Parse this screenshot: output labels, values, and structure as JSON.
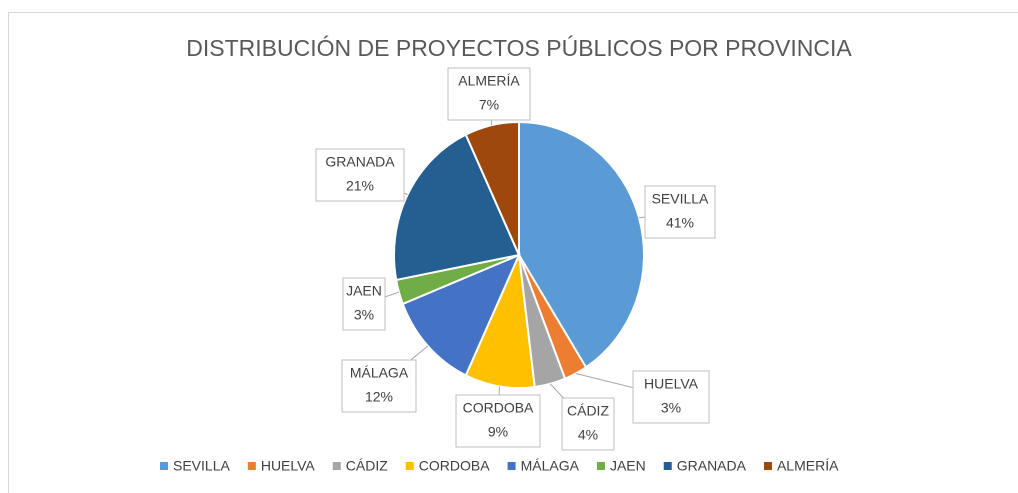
{
  "chart_data": {
    "type": "pie",
    "title": "DISTRIBUCIÓN DE PROYECTOS PÚBLICOS POR PROVINCIA",
    "categories": [
      "SEVILLA",
      "HUELVA",
      "CÁDIZ",
      "CORDOBA",
      "MÁLAGA",
      "JAEN",
      "GRANADA",
      "ALMERÍA"
    ],
    "values": [
      41,
      3,
      4,
      9,
      12,
      3,
      21,
      7
    ],
    "value_labels": [
      "41%",
      "3%",
      "4%",
      "9%",
      "12%",
      "3%",
      "21%",
      "7%"
    ],
    "colors": [
      "#5b9bd5",
      "#ed7d31",
      "#a5a5a5",
      "#ffc000",
      "#4472c4",
      "#70ad47",
      "#255e91",
      "#9e480e"
    ],
    "legend": "bottom"
  }
}
